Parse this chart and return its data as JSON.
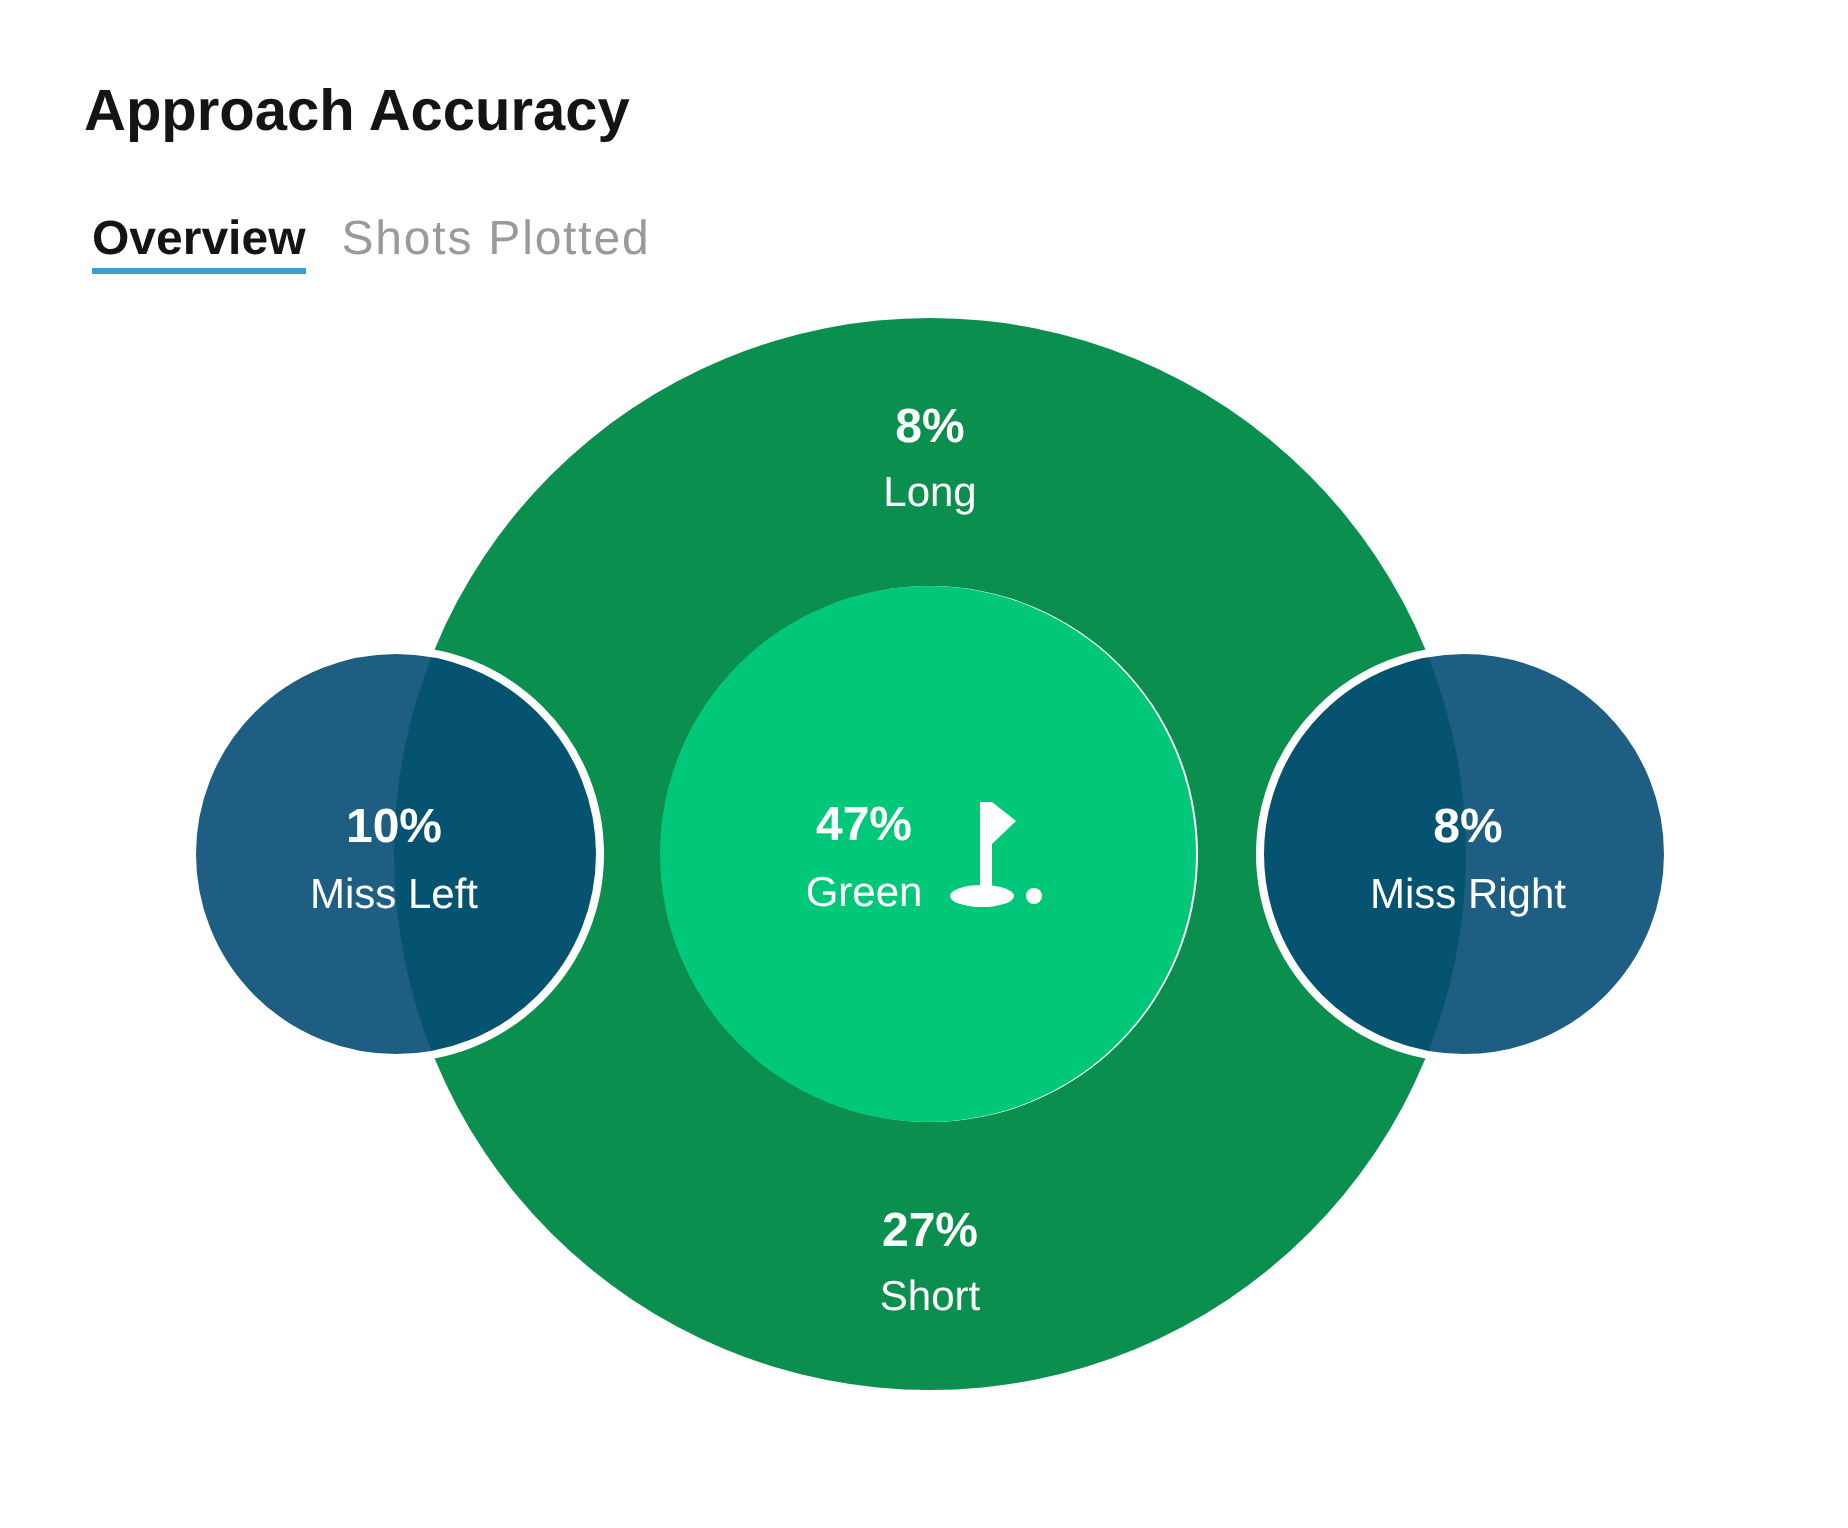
{
  "chart_data": {
    "type": "other",
    "title": "Approach Accuracy",
    "annotations": [
      "Overview",
      "Shots Plotted"
    ],
    "categories": [
      "Long",
      "Miss Left",
      "Green",
      "Miss Right",
      "Short"
    ],
    "values": [
      8,
      10,
      47,
      8,
      27
    ],
    "value_labels": [
      "8%",
      "10%",
      "47%",
      "8%",
      "27%"
    ],
    "colors": [
      "#0a8f4f",
      "#054c74",
      "#00c878",
      "#054c74",
      "#0a8f4f"
    ]
  }
}
